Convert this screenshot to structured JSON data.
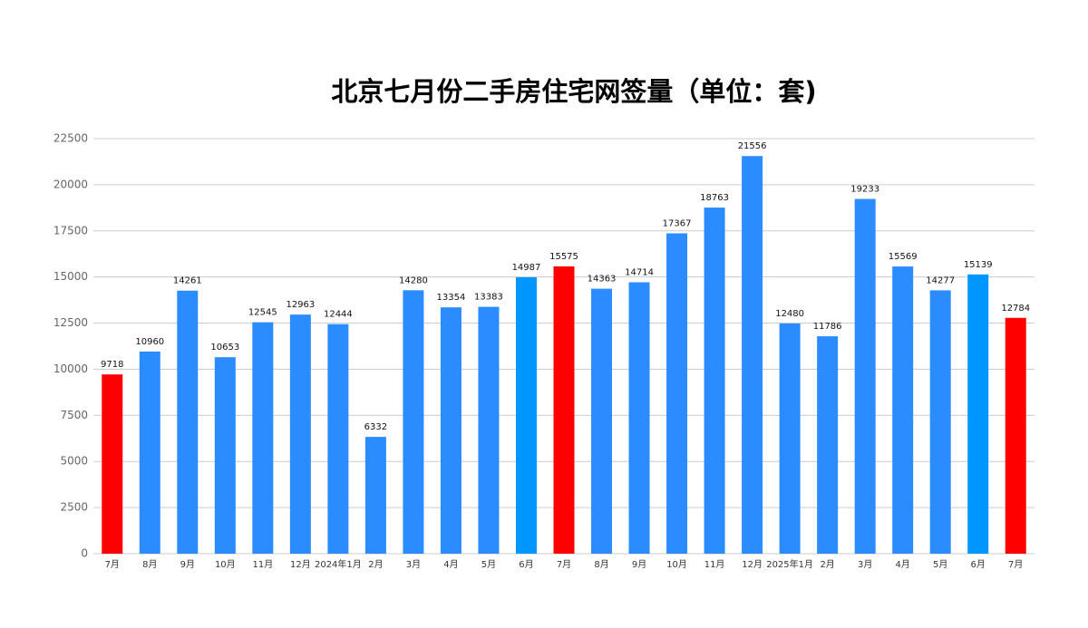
{
  "chart_data": {
    "type": "bar",
    "title": "北京七月份二手房住宅网签量（单位：套)",
    "categories": [
      "7月",
      "8月",
      "9月",
      "10月",
      "11月",
      "12月",
      "2024年1月",
      "2月",
      "3月",
      "4月",
      "5月",
      "6月",
      "7月",
      "8月",
      "9月",
      "10月",
      "11月",
      "12月",
      "2025年1月",
      "2月",
      "3月",
      "4月",
      "5月",
      "6月",
      "7月"
    ],
    "values": [
      9718,
      10960,
      14261,
      10653,
      12545,
      12963,
      12444,
      6332,
      14280,
      13354,
      13383,
      14987,
      15575,
      14363,
      14714,
      17367,
      18763,
      21556,
      12480,
      11786,
      19233,
      15569,
      14277,
      15139,
      12784
    ],
    "colors": [
      "#ff0000",
      "#2b8cff",
      "#2b8cff",
      "#2b8cff",
      "#2b8cff",
      "#2b8cff",
      "#2b8cff",
      "#2b8cff",
      "#2b8cff",
      "#2b8cff",
      "#2b8cff",
      "#0096ff",
      "#ff0000",
      "#2b8cff",
      "#2b8cff",
      "#2b8cff",
      "#2b8cff",
      "#2b8cff",
      "#2b8cff",
      "#2b8cff",
      "#2b8cff",
      "#2b8cff",
      "#2b8cff",
      "#0096ff",
      "#ff0000"
    ],
    "ylim": [
      0,
      22500
    ],
    "yticks": [
      0,
      2500,
      5000,
      7500,
      10000,
      12500,
      15000,
      17500,
      20000,
      22500
    ],
    "grid": true
  }
}
